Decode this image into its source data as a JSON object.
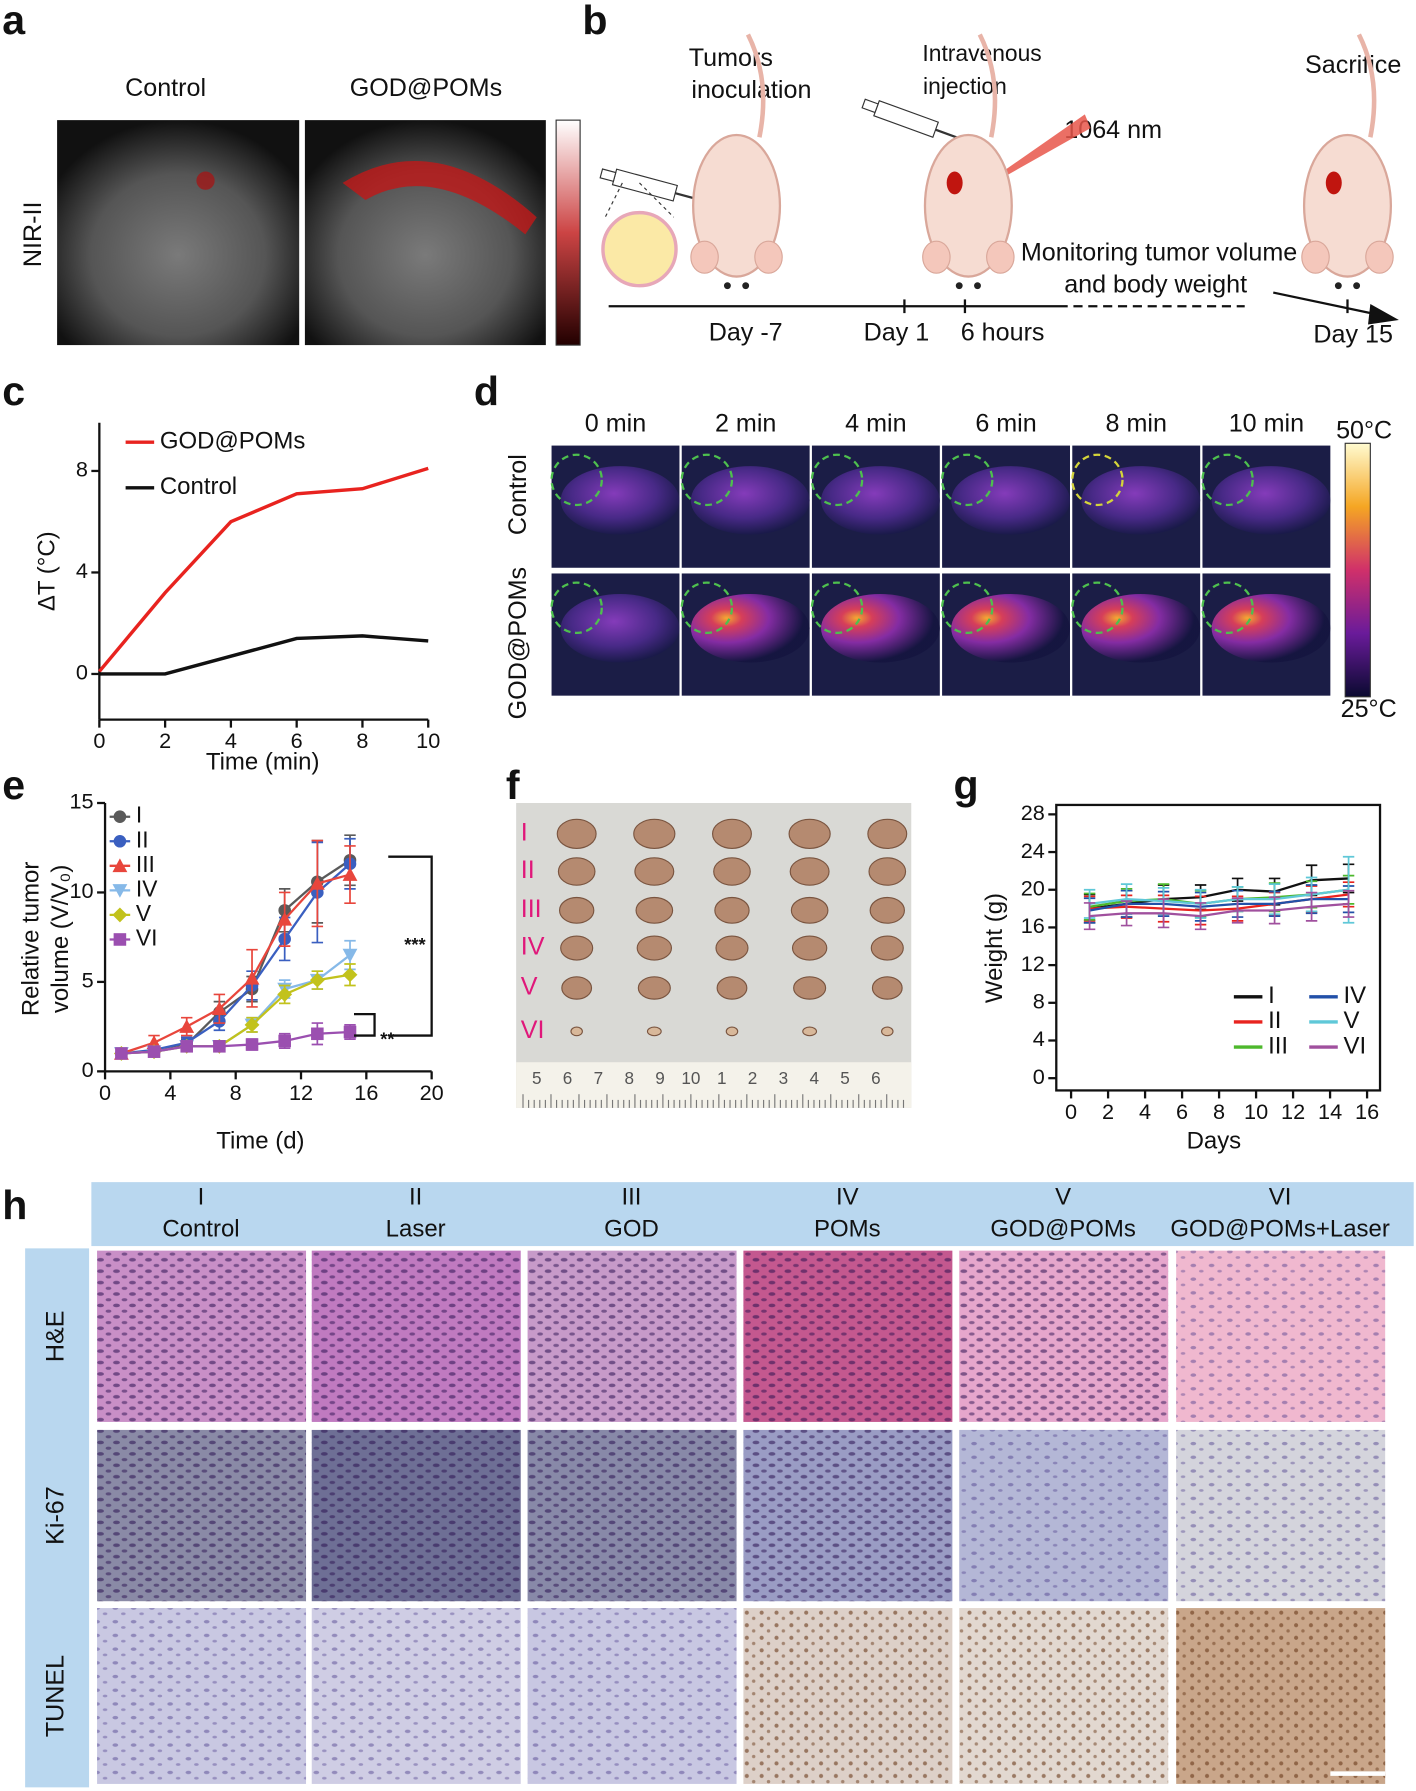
{
  "panel_labels": [
    "a",
    "b",
    "c",
    "d",
    "e",
    "f",
    "g",
    "h"
  ],
  "panel_a": {
    "columns": [
      "Control",
      "GOD@POMs"
    ],
    "row_label": "NIR-II"
  },
  "panel_b": {
    "steps": [
      [
        "Tumors",
        "inoculation"
      ],
      [
        "Intravenous",
        "injection"
      ],
      [
        "Sacrifice"
      ]
    ],
    "laser": "1064 nm",
    "monitoring": [
      "Monitoring tumor volume",
      "and body weight"
    ],
    "timeline": [
      "Day -7",
      "Day 1",
      "6 hours",
      "Day 15"
    ]
  },
  "panel_d": {
    "times": [
      "0 min",
      "2 min",
      "4 min",
      "6 min",
      "8 min",
      "10 min"
    ],
    "rows": [
      "Control",
      "GOD@POMs"
    ],
    "colorbar": [
      "50°C",
      "25°C"
    ]
  },
  "panel_f": {
    "rows": [
      "I",
      "II",
      "III",
      "IV",
      "V",
      "VI"
    ],
    "ruler": [
      "5",
      "6",
      "7",
      "8",
      "9",
      "10",
      "1",
      "2",
      "3",
      "4",
      "5",
      "6"
    ]
  },
  "panel_h": {
    "groups": [
      {
        "id": "I",
        "name": "Control"
      },
      {
        "id": "II",
        "name": "Laser"
      },
      {
        "id": "III",
        "name": "GOD"
      },
      {
        "id": "IV",
        "name": "POMs"
      },
      {
        "id": "V",
        "name": "GOD@POMs"
      },
      {
        "id": "VI",
        "name": "GOD@POMs+Laser"
      }
    ],
    "rows": [
      "H&E",
      "Ki-67",
      "TUNEL"
    ]
  },
  "chart_data": [
    {
      "type": "line",
      "xlabel": "Time (min)",
      "ylabel": [
        "ΔT (°C)"
      ],
      "x": [
        0,
        2,
        4,
        6,
        8,
        10
      ],
      "series": [
        {
          "name": "GOD@POMs",
          "color": "#e8231f",
          "values": [
            0.1,
            3.2,
            6,
            7.1,
            7.3,
            8.1
          ]
        },
        {
          "name": "Control",
          "color": "#111111",
          "values": [
            0,
            0,
            0.7,
            1.4,
            1.5,
            1.3
          ]
        }
      ],
      "xlim": [
        0,
        10
      ],
      "ylim": [
        -1.8,
        9.9
      ],
      "xticks": [
        0,
        2,
        4,
        6,
        8,
        10
      ],
      "yticks": [
        0,
        4,
        8
      ],
      "legend": "upper left"
    },
    {
      "type": "line",
      "xlabel": "Time (d)",
      "ylabel": [
        "Relative tumor",
        "volume (V/V₀)"
      ],
      "x": [
        1,
        3,
        5,
        7,
        9,
        11,
        13,
        15
      ],
      "series": [
        {
          "name": "I",
          "color": "#5a5a5a",
          "marker": "circle",
          "values": [
            1,
            1.1,
            1.5,
            3.3,
            4.6,
            9,
            10.6,
            11.8
          ],
          "errors": [
            0.1,
            0.2,
            0.3,
            0.6,
            0.7,
            1.2,
            2.3,
            1.4
          ]
        },
        {
          "name": "II",
          "color": "#3a5fc0",
          "marker": "circle",
          "values": [
            1,
            1.2,
            1.6,
            2.8,
            4.8,
            7.4,
            10,
            11.6
          ],
          "errors": [
            0.1,
            0.2,
            0.3,
            0.5,
            0.8,
            1.2,
            2.8,
            1.4
          ]
        },
        {
          "name": "III",
          "color": "#e8463c",
          "marker": "triangle",
          "values": [
            1,
            1.6,
            2.5,
            3.5,
            5.2,
            8.5,
            10.5,
            11
          ],
          "errors": [
            0.1,
            0.4,
            0.5,
            0.8,
            1.6,
            1.5,
            2.4,
            1.6
          ]
        },
        {
          "name": "IV",
          "color": "#86b9e8",
          "marker": "triangle-down",
          "values": [
            1,
            1.1,
            1.4,
            1.4,
            2.6,
            4.6,
            5.1,
            6.5
          ],
          "errors": [
            0.1,
            0.2,
            0.2,
            0.3,
            0.4,
            0.5,
            0.5,
            0.8
          ]
        },
        {
          "name": "V",
          "color": "#c2c21c",
          "marker": "diamond",
          "values": [
            1,
            1.1,
            1.4,
            1.4,
            2.6,
            4.3,
            5.1,
            5.4
          ],
          "errors": [
            0.1,
            0.2,
            0.2,
            0.3,
            0.4,
            0.5,
            0.5,
            0.6
          ]
        },
        {
          "name": "VI",
          "color": "#9b4fb0",
          "marker": "square",
          "values": [
            1,
            1.1,
            1.4,
            1.4,
            1.5,
            1.7,
            2.1,
            2.2
          ],
          "errors": [
            0.1,
            0.1,
            0.2,
            0.2,
            0.3,
            0.4,
            0.6,
            0.4
          ]
        }
      ],
      "xlim": [
        0,
        20
      ],
      "ylim": [
        0,
        15
      ],
      "xticks": [
        0,
        4,
        8,
        12,
        16,
        20
      ],
      "yticks": [
        0,
        5,
        10,
        15
      ],
      "legend": "upper left",
      "annotations": [
        "**",
        "***"
      ]
    },
    {
      "type": "line",
      "xlabel": "Days",
      "ylabel": [
        "Weight (g)"
      ],
      "x": [
        1,
        3,
        5,
        7,
        9,
        11,
        13,
        15
      ],
      "frame": true,
      "series": [
        {
          "name": "I",
          "color": "#111111",
          "values": [
            18,
            18.5,
            19,
            19.2,
            20,
            19.8,
            21,
            21.2
          ],
          "errors": [
            1.5,
            1.4,
            1.5,
            1.3,
            1.2,
            1.4,
            1.6,
            1.5
          ]
        },
        {
          "name": "II",
          "color": "#e8231f",
          "values": [
            18,
            18.2,
            18,
            17.8,
            18,
            18.5,
            19,
            19.5
          ],
          "errors": [
            1.3,
            1.2,
            1.4,
            1.5,
            1.3,
            1.2,
            1.4,
            1.3
          ]
        },
        {
          "name": "III",
          "color": "#4db82c",
          "values": [
            18.2,
            18.8,
            19,
            18.5,
            19,
            19.2,
            19.5,
            20
          ],
          "errors": [
            1.4,
            1.3,
            1.6,
            1.4,
            1.3,
            1.5,
            1.4,
            1.5
          ]
        },
        {
          "name": "IV",
          "color": "#2250a8",
          "values": [
            17.8,
            18.5,
            18.5,
            18.2,
            18.5,
            18.5,
            19,
            19
          ],
          "errors": [
            1.3,
            1.4,
            1.3,
            1.5,
            1.4,
            1.3,
            1.5,
            1.4
          ]
        },
        {
          "name": "V",
          "color": "#5fc8d8",
          "values": [
            18.5,
            19,
            18.8,
            18.5,
            19,
            19,
            19.5,
            20
          ],
          "errors": [
            1.5,
            1.6,
            1.4,
            1.5,
            1.3,
            1.6,
            1.8,
            3.5
          ]
        },
        {
          "name": "VI",
          "color": "#a0509e",
          "values": [
            17.2,
            17.5,
            17.5,
            17.2,
            17.8,
            17.8,
            18.2,
            18.5
          ],
          "errors": [
            1.4,
            1.3,
            1.5,
            1.4,
            1.3,
            1.4,
            1.5,
            1.4
          ]
        }
      ],
      "xlim": [
        -0.8,
        16.7
      ],
      "ylim": [
        -1.3,
        29
      ],
      "xticks": [
        0,
        2,
        4,
        6,
        8,
        10,
        12,
        14,
        16
      ],
      "yticks": [
        0,
        4,
        8,
        12,
        16,
        20,
        24,
        28
      ],
      "legend": "lower right"
    }
  ]
}
